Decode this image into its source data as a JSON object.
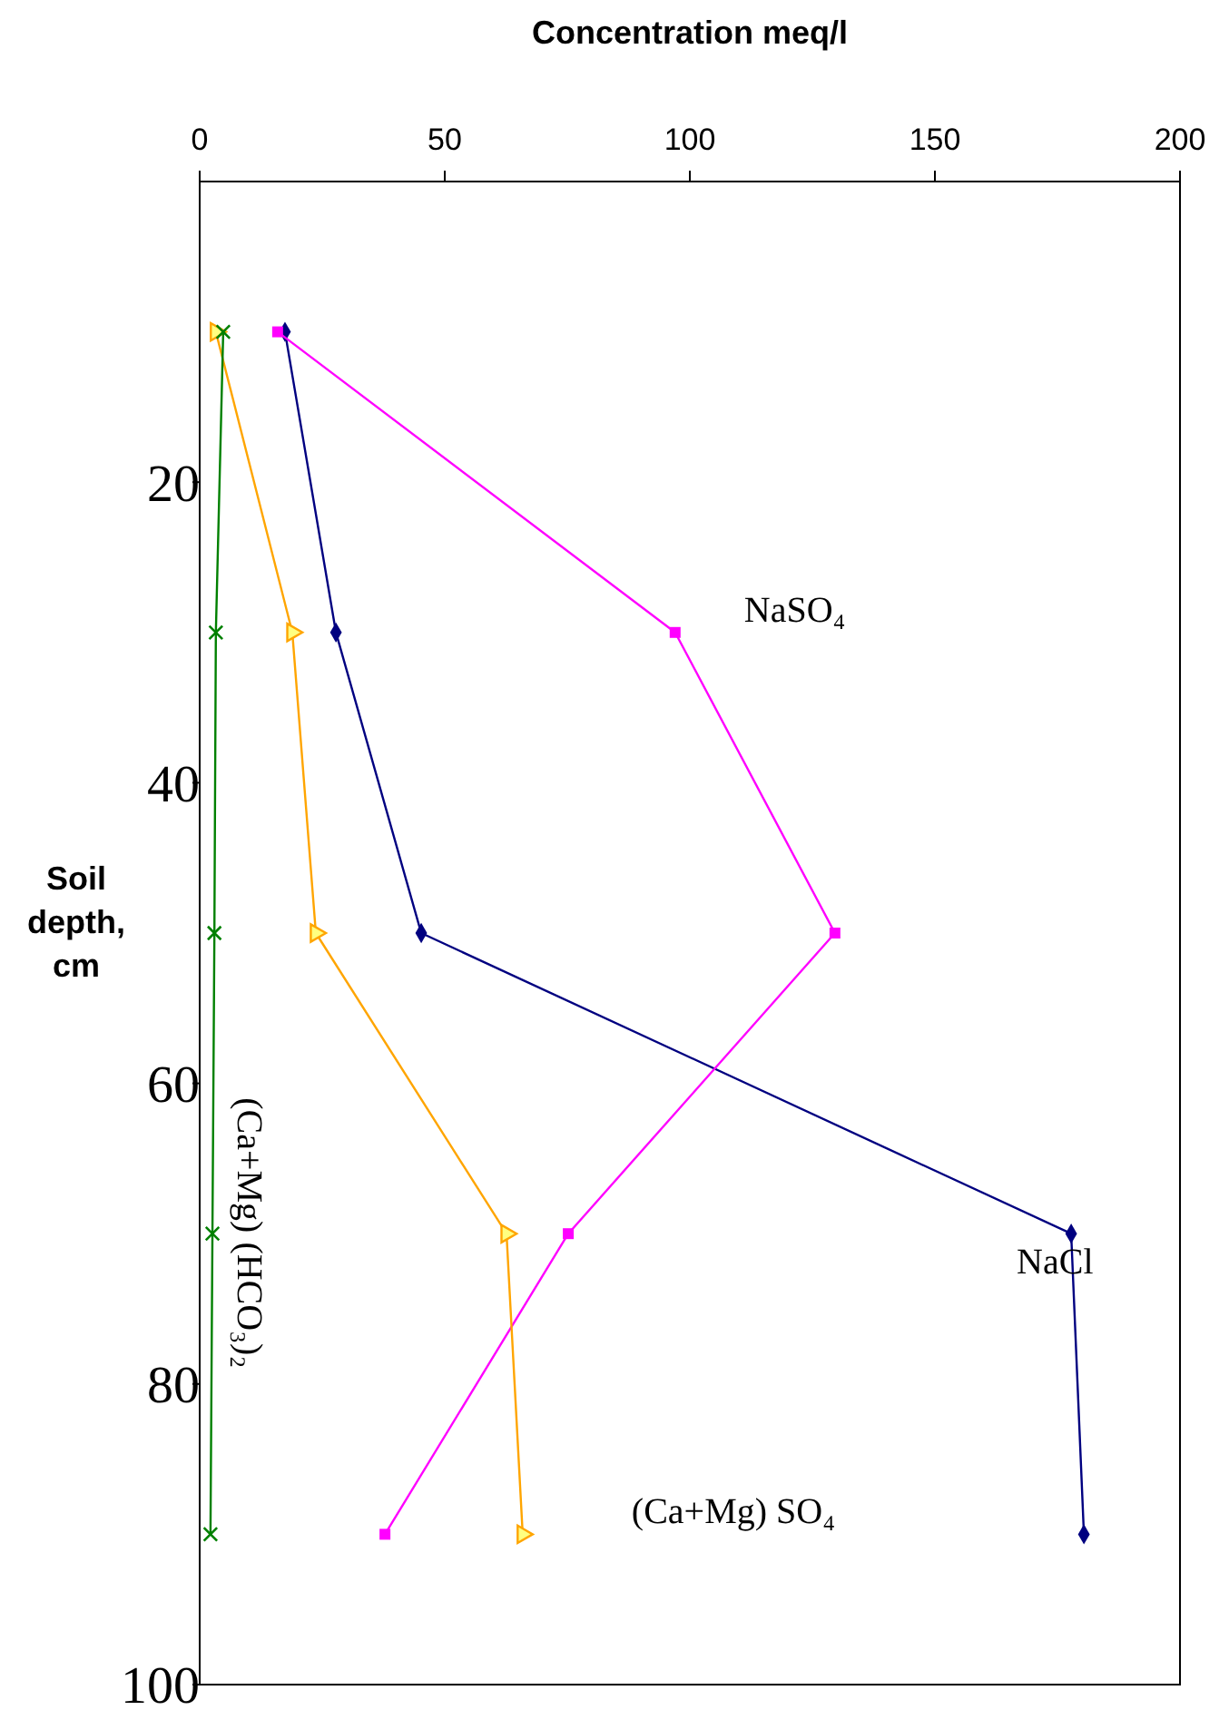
{
  "chart_data": {
    "type": "line",
    "xlabel": "Concentration meq/l",
    "ylabel": "Soil depth, cm",
    "xlim": [
      0,
      200
    ],
    "xticks": [
      0,
      50,
      100,
      150,
      200
    ],
    "ylim": [
      100,
      0
    ],
    "yticks": [
      20,
      40,
      60,
      80,
      100
    ],
    "grid": false,
    "legend": false,
    "line_style": "solid",
    "series": [
      {
        "name": "NaCl",
        "color": "#000080",
        "marker": "diamond",
        "x": [
          17.4,
          27.8,
          45.2,
          177.8,
          180.4
        ],
        "values": [
          10,
          30,
          50,
          70,
          90
        ]
      },
      {
        "name": "NaSO₄",
        "color": "#ff00ff",
        "marker": "square",
        "x": [
          15.9,
          97,
          129.6,
          75.2,
          37.8
        ],
        "values": [
          10,
          30,
          50,
          70,
          90
        ]
      },
      {
        "name": "(Ca+Mg) SO₄",
        "color": "#ffa500",
        "marker": "triangle",
        "x": [
          3.3,
          18.9,
          23.7,
          62.6,
          65.9
        ],
        "values": [
          10,
          30,
          50,
          70,
          90
        ]
      },
      {
        "name": "(Ca+Mg) (HCO₃)₂",
        "color": "#008000",
        "marker": "cross",
        "x": [
          4.8,
          3.3,
          3,
          2.6,
          2.2
        ],
        "values": [
          10,
          30,
          50,
          70,
          90
        ]
      }
    ]
  }
}
